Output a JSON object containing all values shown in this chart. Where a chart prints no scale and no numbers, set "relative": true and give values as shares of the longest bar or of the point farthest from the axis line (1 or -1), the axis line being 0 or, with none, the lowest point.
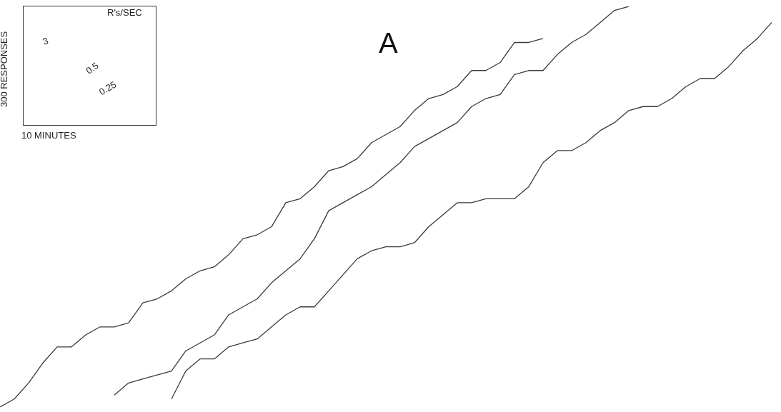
{
  "chart_data": {
    "type": "line",
    "title": "A",
    "relative": true,
    "legend": false,
    "marker": "none",
    "line_style": "solid",
    "categories": [
      null,
      null,
      null,
      null,
      null,
      null,
      null,
      null,
      null,
      null,
      null,
      null,
      null,
      null,
      null,
      null,
      null,
      null,
      null,
      null,
      null,
      null,
      null,
      null,
      null,
      null,
      null,
      null,
      null,
      null,
      null,
      null,
      null,
      null,
      null,
      null,
      null,
      null,
      null,
      null,
      null,
      null,
      null,
      null,
      null,
      null,
      null,
      null,
      null,
      null,
      null,
      null,
      null,
      null,
      null
    ],
    "series": [
      {
        "color": "#3a3a3a",
        "values": [
          0,
          0.02,
          0.06,
          0.11,
          0.15,
          0.15,
          0.18,
          0.2,
          0.2,
          0.21,
          0.26,
          0.27,
          0.29,
          0.32,
          0.34,
          0.35,
          0.38,
          0.42,
          0.43,
          0.45,
          0.51,
          0.52,
          0.55,
          0.59,
          0.6,
          0.62,
          0.66,
          0.68,
          0.7,
          0.74,
          0.77,
          0.78,
          0.8,
          0.84,
          0.84,
          0.86,
          0.91,
          0.91,
          0.92,
          null,
          null,
          null,
          null,
          null,
          null,
          null,
          null,
          null,
          null,
          null,
          null,
          null,
          null,
          null,
          null
        ]
      },
      {
        "color": "#3a3a3a",
        "values": [
          null,
          null,
          null,
          null,
          null,
          null,
          null,
          null,
          0.03,
          0.06,
          0.07,
          0.08,
          0.09,
          0.14,
          0.16,
          0.18,
          0.23,
          0.25,
          0.27,
          0.31,
          0.34,
          0.37,
          0.42,
          0.49,
          0.51,
          0.53,
          0.55,
          0.58,
          0.61,
          0.65,
          0.67,
          0.69,
          0.71,
          0.75,
          0.77,
          0.78,
          0.83,
          0.84,
          0.84,
          0.88,
          0.91,
          0.93,
          0.96,
          0.99,
          1,
          null,
          null,
          null,
          null,
          null,
          null,
          null,
          null,
          null,
          null
        ]
      },
      {
        "color": "#3a3a3a",
        "values": [
          null,
          null,
          null,
          null,
          null,
          null,
          null,
          null,
          null,
          null,
          null,
          null,
          0.02,
          0.09,
          0.12,
          0.12,
          0.15,
          0.16,
          0.17,
          0.2,
          0.23,
          0.25,
          0.25,
          0.29,
          0.33,
          0.37,
          0.39,
          0.4,
          0.4,
          0.41,
          0.45,
          0.48,
          0.51,
          0.51,
          0.52,
          0.52,
          0.52,
          0.55,
          0.61,
          0.64,
          0.64,
          0.66,
          0.69,
          0.71,
          0.74,
          0.75,
          0.75,
          0.77,
          0.8,
          0.82,
          0.82,
          0.85,
          0.89,
          0.92,
          0.96
        ]
      }
    ],
    "annotations": [
      "300 RESPONSES",
      "10 MINUTES",
      "R's/SEC",
      "3",
      "0.5",
      "0.25"
    ]
  }
}
